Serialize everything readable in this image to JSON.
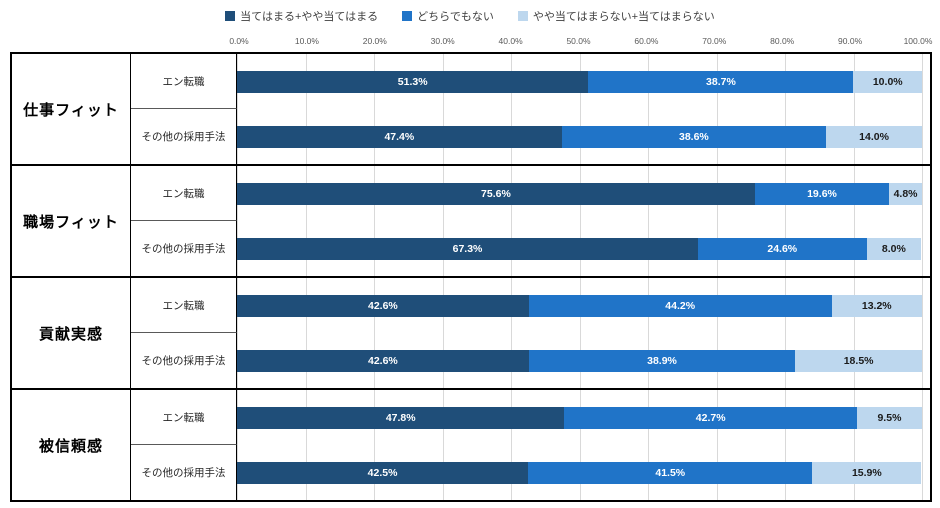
{
  "legend": [
    {
      "label": "当てはまる+やや当てはまる",
      "color": "#1F4E79"
    },
    {
      "label": "どちらでもない",
      "color": "#2074C8"
    },
    {
      "label": "やや当てはまらない+当てはまらない",
      "color": "#BDD7EE"
    }
  ],
  "axis": {
    "ticks": [
      "0.0%",
      "10.0%",
      "20.0%",
      "30.0%",
      "40.0%",
      "50.0%",
      "60.0%",
      "70.0%",
      "80.0%",
      "90.0%",
      "100.0%"
    ],
    "min": 0,
    "max": 100
  },
  "chart_data": {
    "type": "bar",
    "orientation": "horizontal",
    "stacked": true,
    "xlim": [
      0,
      100
    ],
    "grid": true,
    "series_names": [
      "当てはまる+やや当てはまる",
      "どちらでもない",
      "やや当てはまらない+当てはまらない"
    ],
    "colors": [
      "#1F4E79",
      "#2074C8",
      "#BDD7EE"
    ],
    "label_colors": [
      "#ffffff",
      "#ffffff",
      "#1a1a1a"
    ],
    "groups": [
      {
        "category": "仕事フィット",
        "rows": [
          {
            "label": "エン転職",
            "values": [
              51.3,
              38.7,
              10.0
            ]
          },
          {
            "label": "その他の採用手法",
            "values": [
              47.4,
              38.6,
              14.0
            ]
          }
        ]
      },
      {
        "category": "職場フィット",
        "rows": [
          {
            "label": "エン転職",
            "values": [
              75.6,
              19.6,
              4.8
            ]
          },
          {
            "label": "その他の採用手法",
            "values": [
              67.3,
              24.6,
              8.0
            ]
          }
        ]
      },
      {
        "category": "貢献実感",
        "rows": [
          {
            "label": "エン転職",
            "values": [
              42.6,
              44.2,
              13.2
            ]
          },
          {
            "label": "その他の採用手法",
            "values": [
              42.6,
              38.9,
              18.5
            ]
          }
        ]
      },
      {
        "category": "被信頼感",
        "rows": [
          {
            "label": "エン転職",
            "values": [
              47.8,
              42.7,
              9.5
            ]
          },
          {
            "label": "その他の採用手法",
            "values": [
              42.5,
              41.5,
              15.9
            ]
          }
        ]
      }
    ]
  }
}
